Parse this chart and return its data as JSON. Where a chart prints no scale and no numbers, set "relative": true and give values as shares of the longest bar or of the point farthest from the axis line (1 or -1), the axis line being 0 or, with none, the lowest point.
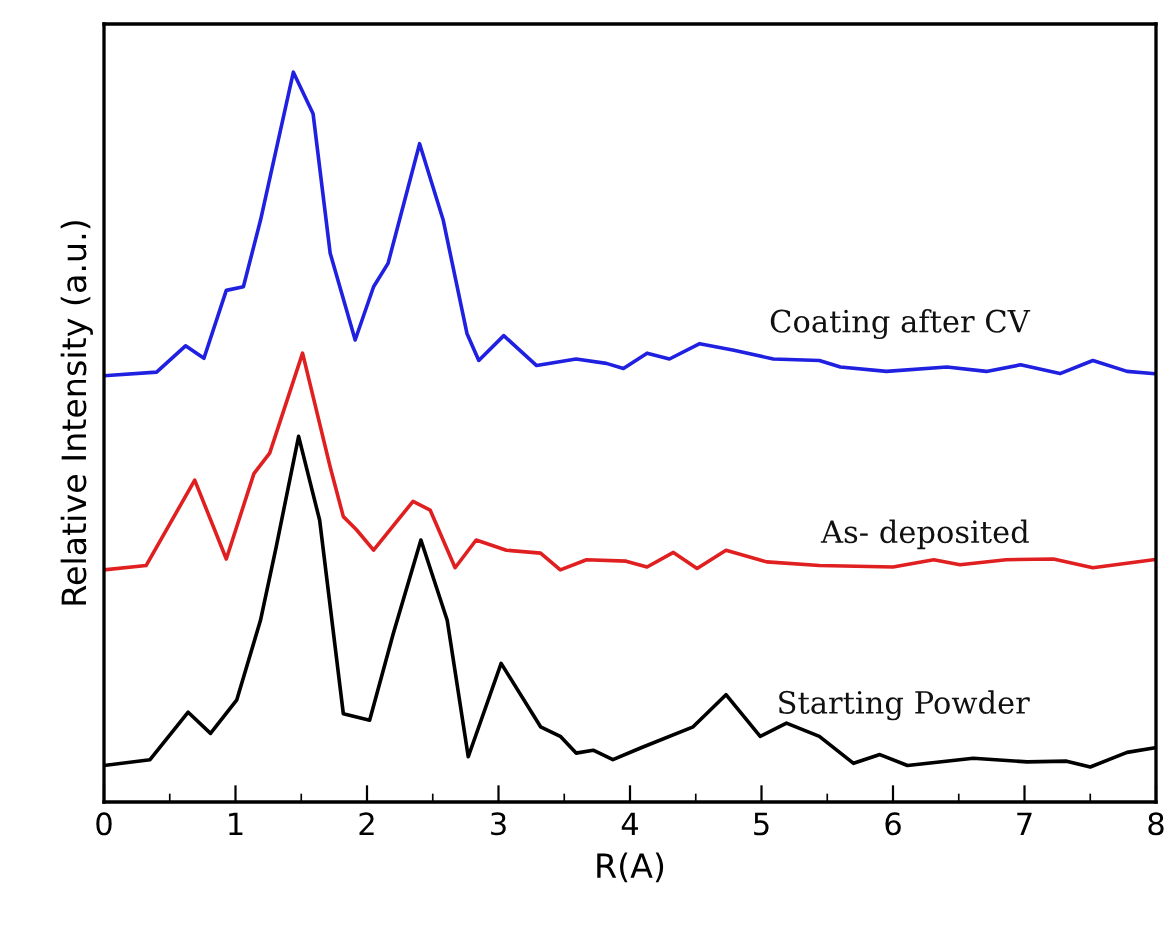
{
  "chart_data": {
    "type": "line",
    "xlabel": "R(A)",
    "ylabel": "Relative Intensity (a.u.)",
    "relative": true,
    "xlim": [
      0,
      8
    ],
    "xticks": [
      0,
      1,
      2,
      3,
      4,
      5,
      6,
      7,
      8
    ],
    "grid": false,
    "legend": false,
    "marker": "none",
    "line_style": "solid",
    "series": [
      {
        "name": "Coating after CV",
        "color": "#2020e0",
        "x": [
          0,
          0.4,
          0.62,
          0.76,
          0.93,
          1.06,
          1.19,
          1.44,
          1.59,
          1.72,
          1.91,
          2.05,
          2.16,
          2.4,
          2.58,
          2.76,
          2.85,
          3.04,
          3.29,
          3.59,
          3.82,
          3.95,
          4.13,
          4.3,
          4.53,
          4.79,
          5.09,
          5.44,
          5.6,
          5.95,
          6.41,
          6.71,
          6.97,
          7.27,
          7.52,
          7.78,
          7.98
        ],
        "values": [
          0.584,
          0.589,
          0.625,
          0.608,
          0.701,
          0.706,
          0.797,
          1.0,
          0.943,
          0.752,
          0.633,
          0.706,
          0.738,
          0.902,
          0.797,
          0.642,
          0.605,
          0.639,
          0.598,
          0.607,
          0.601,
          0.594,
          0.615,
          0.607,
          0.628,
          0.619,
          0.607,
          0.605,
          0.596,
          0.59,
          0.596,
          0.59,
          0.599,
          0.587,
          0.605,
          0.59,
          0.587
        ]
      },
      {
        "name": "As- deposited",
        "color": "#e02020",
        "x": [
          0,
          0.32,
          0.69,
          0.93,
          1.14,
          1.26,
          1.51,
          1.72,
          1.82,
          1.92,
          2.05,
          2.35,
          2.48,
          2.67,
          2.83,
          3.06,
          3.32,
          3.47,
          3.67,
          3.97,
          4.13,
          4.33,
          4.51,
          4.73,
          5.04,
          5.44,
          6.0,
          6.31,
          6.51,
          6.86,
          7.22,
          7.52,
          7.98
        ],
        "values": [
          0.318,
          0.324,
          0.441,
          0.333,
          0.45,
          0.478,
          0.615,
          0.459,
          0.391,
          0.373,
          0.345,
          0.412,
          0.4,
          0.321,
          0.359,
          0.345,
          0.341,
          0.318,
          0.332,
          0.33,
          0.322,
          0.342,
          0.32,
          0.345,
          0.329,
          0.324,
          0.322,
          0.332,
          0.325,
          0.332,
          0.333,
          0.321,
          0.332
        ]
      },
      {
        "name": "Starting Powder",
        "color": "#000000",
        "x": [
          0,
          0.35,
          0.64,
          0.81,
          1.01,
          1.19,
          1.31,
          1.48,
          1.64,
          1.82,
          2.02,
          2.2,
          2.41,
          2.61,
          2.77,
          3.02,
          3.32,
          3.47,
          3.59,
          3.72,
          3.87,
          4.08,
          4.48,
          4.73,
          4.99,
          5.19,
          5.44,
          5.7,
          5.9,
          6.11,
          6.61,
          7.02,
          7.32,
          7.5,
          7.78,
          7.98
        ],
        "values": [
          0.05,
          0.058,
          0.123,
          0.094,
          0.14,
          0.249,
          0.35,
          0.501,
          0.386,
          0.121,
          0.112,
          0.231,
          0.359,
          0.249,
          0.062,
          0.19,
          0.103,
          0.09,
          0.067,
          0.071,
          0.058,
          0.074,
          0.103,
          0.147,
          0.09,
          0.108,
          0.09,
          0.053,
          0.065,
          0.05,
          0.06,
          0.055,
          0.056,
          0.048,
          0.068,
          0.074
        ]
      }
    ]
  }
}
